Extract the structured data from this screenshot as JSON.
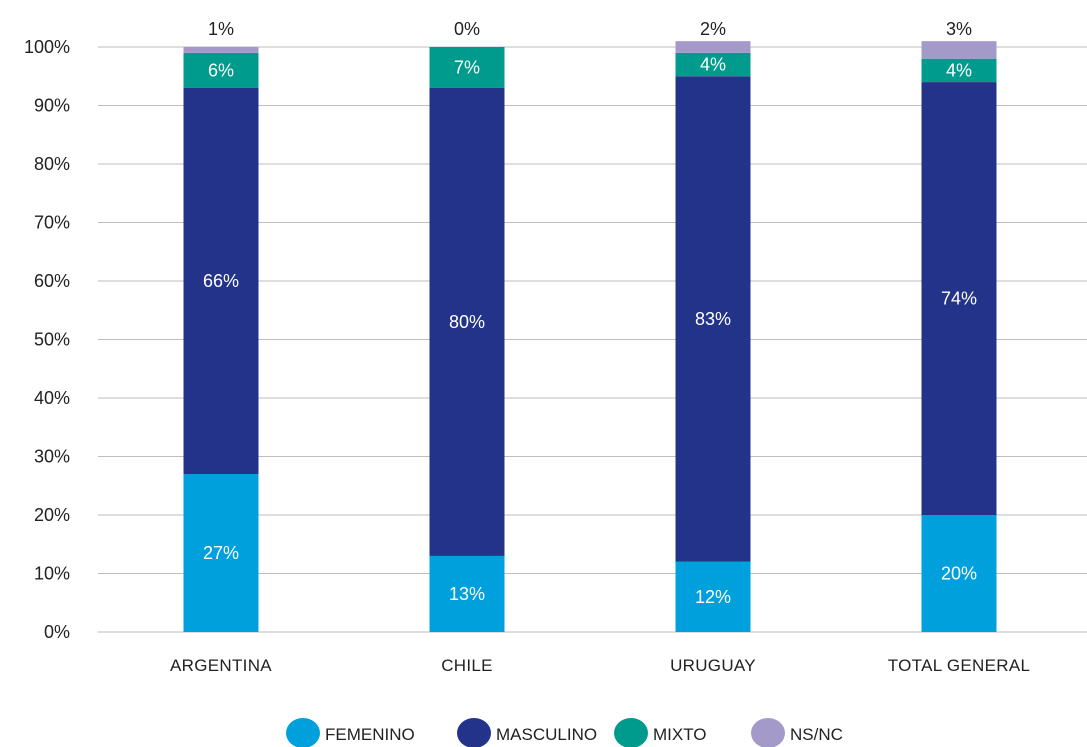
{
  "chart_data": {
    "type": "bar",
    "stacked": true,
    "categories": [
      "ARGENTINA",
      "CHILE",
      "URUGUAY",
      "TOTAL GENERAL"
    ],
    "series": [
      {
        "name": "FEMENINO",
        "color": "#00a0dc",
        "label_color": "#ffffff",
        "values": [
          27,
          13,
          12,
          20
        ],
        "labels": [
          "27%",
          "13%",
          "12%",
          "20%"
        ]
      },
      {
        "name": "MASCULINO",
        "color": "#233389",
        "label_color": "#ffffff",
        "values": [
          66,
          80,
          83,
          74
        ],
        "labels": [
          "66%",
          "80%",
          "83%",
          "74%"
        ]
      },
      {
        "name": "MIXTO",
        "color": "#009b8d",
        "label_color": "#ffffff",
        "values": [
          6,
          7,
          4,
          4
        ],
        "labels": [
          "6%",
          "7%",
          "4%",
          "4%"
        ]
      },
      {
        "name": "NS/NC",
        "color": "#a39ac9",
        "label_color": "#222222",
        "label_position": "above",
        "values": [
          1,
          0,
          2,
          3
        ],
        "labels": [
          "1%",
          "0%",
          "2%",
          "3%"
        ]
      }
    ],
    "yticks": [
      "0%",
      "10%",
      "20%",
      "30%",
      "40%",
      "50%",
      "60%",
      "70%",
      "80%",
      "90%",
      "100%"
    ],
    "ylim": [
      0,
      100
    ],
    "grid": true,
    "legend_position": "bottom",
    "title": "",
    "xlabel": "",
    "ylabel": ""
  }
}
